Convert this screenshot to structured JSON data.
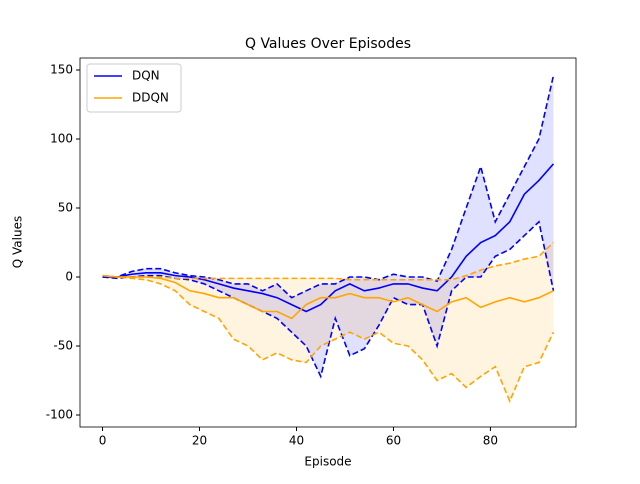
{
  "chart_data": {
    "type": "line",
    "title": "Q Values Over Episodes",
    "x_label": "Episode",
    "y_label": "Q Values",
    "x": [
      0,
      3,
      6,
      9,
      12,
      15,
      18,
      21,
      24,
      27,
      30,
      33,
      36,
      39,
      42,
      45,
      48,
      51,
      54,
      57,
      60,
      63,
      66,
      69,
      72,
      75,
      78,
      81,
      84,
      87,
      90,
      93
    ],
    "series": [
      {
        "name": "DQN",
        "color": "#0000ff",
        "values": [
          0,
          0,
          2,
          3,
          3,
          1,
          0,
          -2,
          -5,
          -8,
          -10,
          -12,
          -15,
          -20,
          -25,
          -20,
          -10,
          -5,
          -10,
          -8,
          -5,
          -5,
          -8,
          -10,
          0,
          15,
          25,
          30,
          40,
          60,
          70,
          82
        ],
        "upper": [
          0,
          0,
          4,
          6,
          6,
          3,
          1,
          0,
          -2,
          -5,
          -5,
          -10,
          -5,
          -15,
          -10,
          -5,
          -5,
          0,
          0,
          -2,
          2,
          0,
          0,
          -3,
          20,
          50,
          80,
          40,
          60,
          80,
          100,
          146
        ],
        "lower": [
          0,
          -1,
          0,
          1,
          1,
          -1,
          -2,
          -5,
          -10,
          -15,
          -20,
          -25,
          -30,
          -40,
          -50,
          -72,
          -30,
          -57,
          -52,
          -35,
          -15,
          -20,
          -20,
          -50,
          -10,
          0,
          0,
          15,
          20,
          30,
          40,
          -10
        ]
      },
      {
        "name": "DDQN",
        "color": "#ffa500",
        "values": [
          1,
          0,
          0,
          0,
          -1,
          -4,
          -10,
          -12,
          -15,
          -15,
          -20,
          -25,
          -25,
          -30,
          -20,
          -15,
          -15,
          -12,
          -15,
          -15,
          -18,
          -15,
          -20,
          -25,
          -18,
          -15,
          -22,
          -18,
          -15,
          -18,
          -15,
          -10
        ],
        "upper": [
          1,
          0,
          0,
          0,
          0,
          -1,
          -1,
          -1,
          -1,
          -1,
          -1,
          -1,
          -1,
          -1,
          -1,
          -1,
          -1,
          -2,
          -2,
          -2,
          -2,
          -2,
          -2,
          -2,
          -2,
          1,
          5,
          8,
          10,
          13,
          15,
          25
        ],
        "lower": [
          1,
          0,
          -1,
          -2,
          -5,
          -10,
          -20,
          -25,
          -30,
          -45,
          -50,
          -60,
          -55,
          -60,
          -62,
          -50,
          -45,
          -40,
          -45,
          -40,
          -48,
          -50,
          -60,
          -75,
          -70,
          -80,
          -72,
          -65,
          -90,
          -65,
          -62,
          -40
        ]
      }
    ],
    "xlim": [
      -4.65,
      97.65
    ],
    "ylim": [
      -108.7,
      158.7
    ],
    "xticks": [
      0,
      20,
      40,
      60,
      80
    ],
    "yticks": [
      -100,
      -50,
      0,
      50,
      100,
      150
    ],
    "legend": "upper left"
  }
}
